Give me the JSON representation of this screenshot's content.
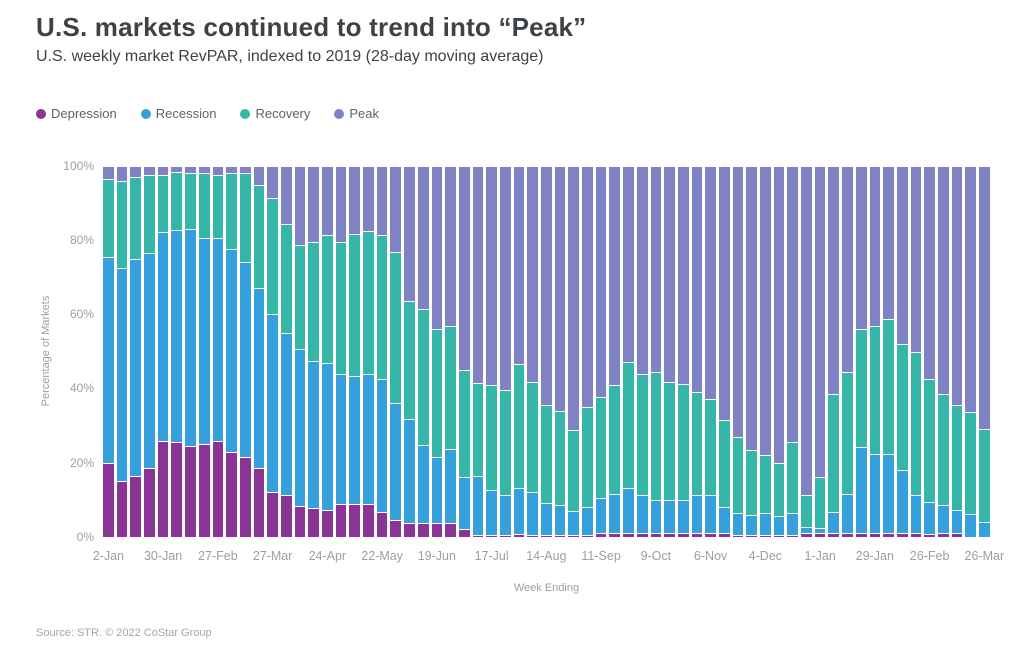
{
  "title": "U.S. markets continued to trend into “Peak”",
  "subtitle": "U.S. weekly market RevPAR, indexed to 2019 (28-day moving average)",
  "legend": [
    {
      "label": "Depression",
      "color": "#8a3595"
    },
    {
      "label": "Recession",
      "color": "#35a0db"
    },
    {
      "label": "Recovery",
      "color": "#35b6a8"
    },
    {
      "label": "Peak",
      "color": "#7f83c3"
    }
  ],
  "axes": {
    "y_label": "Percentage of Markets",
    "x_label": "Week Ending",
    "y_ticks": [
      "100%",
      "80%",
      "60%",
      "40%",
      "20%",
      "0%"
    ]
  },
  "source": "Source: STR. © 2022 CoStar Group",
  "chart_data": {
    "type": "bar",
    "stacked": true,
    "orientation": "vertical",
    "ylim": [
      0,
      100
    ],
    "grid": false,
    "legend_position": "top-left",
    "x_tick_every": 4,
    "x_tick_labels": [
      "2-Jan",
      "30-Jan",
      "27-Feb",
      "27-Mar",
      "24-Apr",
      "22-May",
      "19-Jun",
      "17-Jul",
      "14-Aug",
      "11-Sep",
      "9-Oct",
      "6-Nov",
      "4-Dec",
      "1-Jan",
      "29-Jan",
      "26-Feb",
      "26-Mar"
    ],
    "series": [
      {
        "name": "Depression",
        "color": "#8a3595",
        "values": [
          20,
          15,
          16.5,
          18.5,
          26,
          25.5,
          24.5,
          25,
          25.8,
          23,
          21.7,
          18.5,
          12.2,
          11.3,
          8.4,
          7.7,
          7.3,
          8.8,
          8.8,
          8.8,
          6.8,
          4.7,
          3.7,
          3.7,
          3.7,
          3.7,
          2.2,
          0.5,
          0.5,
          0.5,
          0.7,
          0.5,
          0.5,
          0.5,
          0.5,
          0.5,
          1,
          1,
          1,
          1,
          1,
          1,
          1,
          1,
          1,
          1,
          0.5,
          0.5,
          0.5,
          0.5,
          0.5,
          1,
          1,
          1,
          1,
          1,
          1,
          1,
          1,
          1,
          0.7,
          1,
          1,
          0,
          0
        ]
      },
      {
        "name": "Recession",
        "color": "#35a0db",
        "values": [
          55.5,
          57.5,
          58.5,
          58,
          56.3,
          57.2,
          58.5,
          55.5,
          54.7,
          54.6,
          52.5,
          48.7,
          47.8,
          43.6,
          42.2,
          39.7,
          39.5,
          35.2,
          34.7,
          35.2,
          35.7,
          31.5,
          28.2,
          21.2,
          17.9,
          20.1,
          14,
          16,
          12.1,
          10.8,
          12.4,
          11.7,
          8.8,
          8.1,
          6.5,
          7.7,
          9.4,
          10.7,
          12.1,
          10.3,
          8.9,
          8.9,
          8.9,
          10.3,
          10.3,
          7.2,
          5.9,
          5.4,
          5.9,
          5.2,
          5.9,
          1.8,
          1.3,
          5.8,
          10.5,
          23.3,
          21.5,
          21.5,
          17,
          10.3,
          8.8,
          7.6,
          6.3,
          6.1,
          4.1
        ]
      },
      {
        "name": "Recovery",
        "color": "#35b6a8",
        "values": [
          21,
          23.5,
          22,
          21,
          15.2,
          15.8,
          15,
          17.5,
          17.1,
          20.4,
          23.8,
          27.8,
          31.5,
          29.6,
          28.1,
          32,
          34.6,
          35.5,
          38.1,
          38.5,
          39,
          40.5,
          31.8,
          36.6,
          34.5,
          33.2,
          28.7,
          25,
          28.4,
          28.4,
          33.6,
          29.6,
          26.4,
          25.4,
          21.8,
          26.8,
          27.3,
          29.2,
          34,
          32.7,
          34.5,
          31.9,
          31.4,
          27.8,
          26,
          23.3,
          20.6,
          17.5,
          15.7,
          14.3,
          19.3,
          8.5,
          14,
          31.8,
          32.9,
          31.8,
          34.5,
          36.3,
          34,
          38.5,
          33.2,
          30,
          28.2,
          27.6,
          25.1
        ]
      },
      {
        "name": "Peak",
        "color": "#7f83c3",
        "values": [
          3.5,
          4,
          3,
          2.5,
          2.5,
          1.5,
          2,
          2,
          2.4,
          2,
          2,
          5,
          8.5,
          15.5,
          21.3,
          20.6,
          18.6,
          20.5,
          18.4,
          17.5,
          18.5,
          23.3,
          36.3,
          38.5,
          43.9,
          43,
          55.1,
          58.5,
          59,
          60.3,
          53.3,
          58.2,
          64.3,
          66,
          71.2,
          65,
          62.3,
          59.1,
          52.9,
          56,
          55.6,
          58.2,
          58.7,
          60.9,
          62.7,
          68.5,
          73,
          76.6,
          77.9,
          80,
          74.3,
          88.7,
          83.7,
          61.4,
          55.6,
          43.9,
          43,
          41.2,
          48,
          50.2,
          57.3,
          61.4,
          64.5,
          66.3,
          70.8
        ]
      }
    ]
  }
}
